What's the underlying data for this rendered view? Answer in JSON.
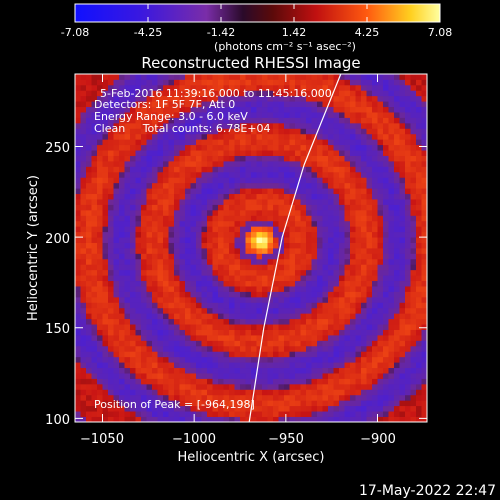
{
  "colorbar": {
    "ticks": [
      "-7.08",
      "-4.25",
      "-1.42",
      "1.42",
      "4.25",
      "7.08"
    ],
    "unit_label": "(photons cm⁻² s⁻¹ asec⁻²)"
  },
  "chart_data": {
    "type": "heatmap",
    "title": "Reconstructed RHESSI Image",
    "xlabel": "Heliocentric X (arcsec)",
    "ylabel": "Heliocentric Y (arcsec)",
    "xlim": [
      -1065,
      -873
    ],
    "ylim": [
      98,
      290
    ],
    "x_ticks": [
      -1050,
      -1000,
      -950,
      -900
    ],
    "y_ticks": [
      100,
      150,
      200,
      250
    ],
    "x_tick_labels": [
      "−1050",
      "−1000",
      "−950",
      "−900"
    ],
    "y_tick_labels": [
      "100",
      "150",
      "200",
      "250"
    ],
    "color_range": [
      -7.08,
      7.08
    ],
    "peak": [
      -964,
      198
    ],
    "limb_line": [
      [
        -970,
        98
      ],
      [
        -962,
        150
      ],
      [
        -952,
        200
      ],
      [
        -940,
        240
      ],
      [
        -920,
        290
      ]
    ],
    "annotations": {
      "line1": "5-Feb-2016 11:39:16.000 to 11:45:16.000",
      "line2": "Detectors: 1F 5F 7F, Att 0",
      "line3": "Energy Range: 3.0 - 6.0 keV",
      "line4": "Clean     Total counts: 6.78E+04",
      "peak_text": "Position of Peak = [-964,198]"
    }
  },
  "footer": {
    "timestamp": "17-May-2022 22:47"
  },
  "colors": {
    "background": "#000000",
    "text": "#ffffff"
  }
}
